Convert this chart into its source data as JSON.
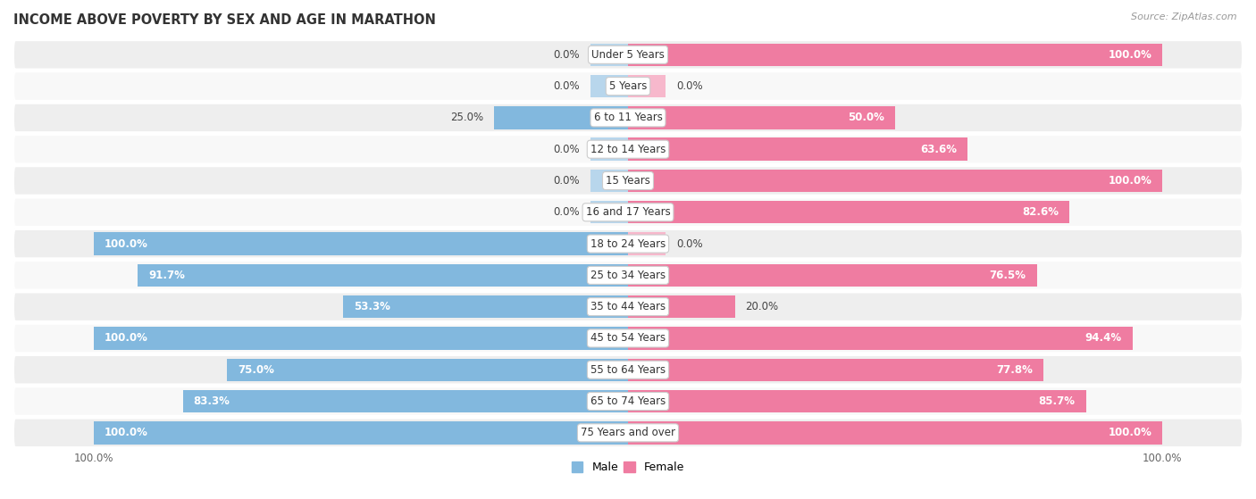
{
  "title": "INCOME ABOVE POVERTY BY SEX AND AGE IN MARATHON",
  "source": "Source: ZipAtlas.com",
  "categories": [
    "Under 5 Years",
    "5 Years",
    "6 to 11 Years",
    "12 to 14 Years",
    "15 Years",
    "16 and 17 Years",
    "18 to 24 Years",
    "25 to 34 Years",
    "35 to 44 Years",
    "45 to 54 Years",
    "55 to 64 Years",
    "65 to 74 Years",
    "75 Years and over"
  ],
  "male": [
    0.0,
    0.0,
    25.0,
    0.0,
    0.0,
    0.0,
    100.0,
    91.7,
    53.3,
    100.0,
    75.0,
    83.3,
    100.0
  ],
  "female": [
    100.0,
    0.0,
    50.0,
    63.6,
    100.0,
    82.6,
    0.0,
    76.5,
    20.0,
    94.4,
    77.8,
    85.7,
    100.0
  ],
  "male_label": [
    "0.0%",
    "0.0%",
    "25.0%",
    "0.0%",
    "0.0%",
    "0.0%",
    "100.0%",
    "91.7%",
    "53.3%",
    "100.0%",
    "75.0%",
    "83.3%",
    "100.0%"
  ],
  "female_label": [
    "100.0%",
    "0.0%",
    "50.0%",
    "63.6%",
    "100.0%",
    "82.6%",
    "0.0%",
    "76.5%",
    "20.0%",
    "94.4%",
    "77.8%",
    "85.7%",
    "100.0%"
  ],
  "male_color": "#82b8de",
  "female_color": "#ef7ca1",
  "male_stub_color": "#b8d6ec",
  "female_stub_color": "#f7b8cc",
  "row_bg_light": "#eeeeee",
  "row_bg_white": "#f8f8f8",
  "bar_height": 0.72,
  "stub_val": 7.0,
  "label_fontsize": 8.5,
  "title_fontsize": 10.5,
  "axis_fontsize": 8.5,
  "xlim": 115
}
